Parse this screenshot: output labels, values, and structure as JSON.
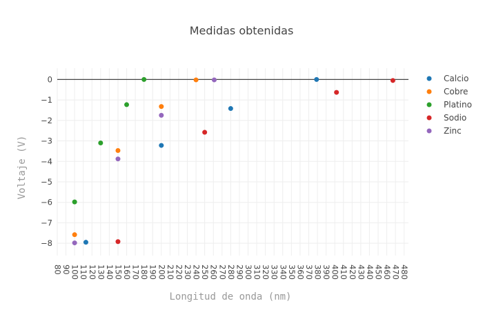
{
  "chart_data": {
    "type": "scatter",
    "title": "Medidas obtenidas",
    "xlabel": "Longitud de onda (nm)",
    "ylabel": "Voltaje (V)",
    "xlim": [
      80,
      485
    ],
    "ylim": [
      -8.6,
      0.55
    ],
    "xticks": [
      80,
      90,
      100,
      110,
      120,
      130,
      140,
      150,
      160,
      170,
      180,
      190,
      200,
      210,
      220,
      230,
      240,
      250,
      260,
      270,
      280,
      290,
      300,
      310,
      320,
      330,
      340,
      350,
      360,
      370,
      380,
      390,
      400,
      410,
      420,
      430,
      440,
      450,
      460,
      470,
      480
    ],
    "yticks": [
      0,
      -1,
      -2,
      -3,
      -4,
      -5,
      -6,
      -7,
      -8
    ],
    "grid": true,
    "legend_position": "right",
    "series": [
      {
        "name": "Calcio",
        "color": "#1f77b4",
        "points": [
          {
            "x": 113,
            "y": -7.95
          },
          {
            "x": 200,
            "y": -3.22
          },
          {
            "x": 280,
            "y": -1.42
          },
          {
            "x": 379,
            "y": 0
          }
        ]
      },
      {
        "name": "Cobre",
        "color": "#ff7f0e",
        "points": [
          {
            "x": 100,
            "y": -7.58
          },
          {
            "x": 150,
            "y": -3.47
          },
          {
            "x": 200,
            "y": -1.32
          },
          {
            "x": 240,
            "y": -0.02
          }
        ]
      },
      {
        "name": "Platino",
        "color": "#2ca02c",
        "points": [
          {
            "x": 100,
            "y": -5.98
          },
          {
            "x": 130,
            "y": -3.1
          },
          {
            "x": 160,
            "y": -1.23
          },
          {
            "x": 180,
            "y": 0
          }
        ]
      },
      {
        "name": "Sodio",
        "color": "#d62728",
        "points": [
          {
            "x": 150,
            "y": -7.92
          },
          {
            "x": 250,
            "y": -2.58
          },
          {
            "x": 402,
            "y": -0.63
          },
          {
            "x": 467,
            "y": -0.05
          }
        ]
      },
      {
        "name": "Zinc",
        "color": "#9467bd",
        "points": [
          {
            "x": 100,
            "y": -7.98
          },
          {
            "x": 150,
            "y": -3.88
          },
          {
            "x": 200,
            "y": -1.75
          },
          {
            "x": 261,
            "y": -0.02
          }
        ]
      }
    ]
  }
}
